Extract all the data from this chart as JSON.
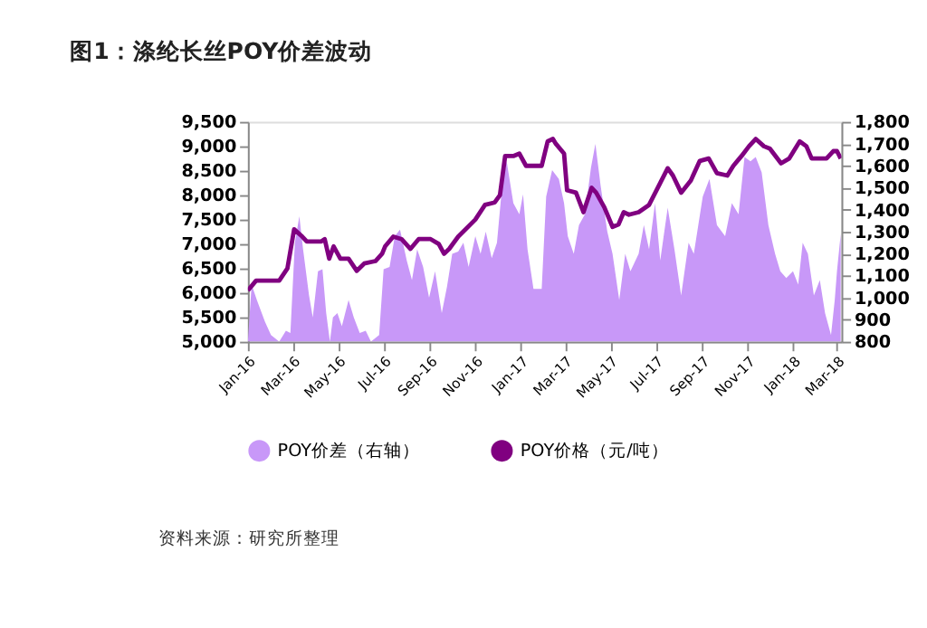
{
  "chart_data": {
    "type": "line",
    "title": "图1：涤纶长丝POY价差波动",
    "xlim": [
      "2016-01-01",
      "2018-03-07"
    ],
    "xticks": [
      {
        "value": "2016-01",
        "label": "Jan-16"
      },
      {
        "value": "2016-03",
        "label": "Mar-16"
      },
      {
        "value": "2016-05",
        "label": "May-16"
      },
      {
        "value": "2016-07",
        "label": "Jul-16"
      },
      {
        "value": "2016-09",
        "label": "Sep-16"
      },
      {
        "value": "2016-11",
        "label": "Nov-16"
      },
      {
        "value": "2017-01",
        "label": "Jan-17"
      },
      {
        "value": "2017-03",
        "label": "Mar-17"
      },
      {
        "value": "2017-05",
        "label": "May-17"
      },
      {
        "value": "2017-07",
        "label": "Jul-17"
      },
      {
        "value": "2017-09",
        "label": "Sep-17"
      },
      {
        "value": "2017-11",
        "label": "Nov-17"
      },
      {
        "value": "2018-01",
        "label": "Jan-18"
      },
      {
        "value": "2018-03",
        "label": "Mar-18"
      }
    ],
    "ylim": [
      5000,
      9500
    ],
    "yticks": [
      {
        "value": 5000,
        "label": "5,000"
      },
      {
        "value": 5500,
        "label": "5,500"
      },
      {
        "value": 6000,
        "label": "6,000"
      },
      {
        "value": 6500,
        "label": "6,500"
      },
      {
        "value": 7000,
        "label": "7,000"
      },
      {
        "value": 7500,
        "label": "7,500"
      },
      {
        "value": 8000,
        "label": "8,000"
      },
      {
        "value": 8500,
        "label": "8,500"
      },
      {
        "value": 9000,
        "label": "9,000"
      },
      {
        "value": 9500,
        "label": "9,500"
      }
    ],
    "y2lim": [
      800,
      1800
    ],
    "y2ticks": [
      {
        "value": 800,
        "label": "800"
      },
      {
        "value": 900,
        "label": "900"
      },
      {
        "value": 1000,
        "label": "1,000"
      },
      {
        "value": 1100,
        "label": "1,100"
      },
      {
        "value": 1200,
        "label": "1,200"
      },
      {
        "value": 1300,
        "label": "1,300"
      },
      {
        "value": 1400,
        "label": "1,400"
      },
      {
        "value": 1500,
        "label": "1,500"
      },
      {
        "value": 1600,
        "label": "1,600"
      },
      {
        "value": 1700,
        "label": "1,700"
      },
      {
        "value": 1800,
        "label": "1,800"
      }
    ],
    "grid": false,
    "legend": "bottom",
    "annotations": [
      "资料来源：研究所整理"
    ],
    "series": [
      {
        "name": "POY价差（右轴）",
        "type": "area",
        "axis": "y2",
        "color": "#c898f8",
        "x": [
          "2016-01-01",
          "2016-01-06",
          "2016-01-13",
          "2016-01-24",
          "2016-02-01",
          "2016-02-12",
          "2016-02-21",
          "2016-02-27",
          "2016-03-04",
          "2016-03-10",
          "2016-03-15",
          "2016-03-23",
          "2016-03-28",
          "2016-04-04",
          "2016-04-10",
          "2016-04-15",
          "2016-04-20",
          "2016-04-24",
          "2016-04-30",
          "2016-05-06",
          "2016-05-15",
          "2016-05-22",
          "2016-05-30",
          "2016-06-07",
          "2016-06-14",
          "2016-06-25",
          "2016-07-01",
          "2016-07-09",
          "2016-07-16",
          "2016-07-23",
          "2016-08-01",
          "2016-08-08",
          "2016-08-15",
          "2016-08-23",
          "2016-08-31",
          "2016-09-08",
          "2016-09-17",
          "2016-09-24",
          "2016-10-01",
          "2016-10-09",
          "2016-10-16",
          "2016-10-23",
          "2016-11-01",
          "2016-11-08",
          "2016-11-15",
          "2016-11-23",
          "2016-11-30",
          "2016-12-07",
          "2016-12-13",
          "2016-12-22",
          "2016-12-30",
          "2017-01-04",
          "2017-01-10",
          "2017-01-18",
          "2017-01-29",
          "2017-02-04",
          "2017-02-12",
          "2017-02-21",
          "2017-02-28",
          "2017-03-05",
          "2017-03-13",
          "2017-03-20",
          "2017-03-28",
          "2017-04-05",
          "2017-04-11",
          "2017-04-18",
          "2017-04-27",
          "2017-05-04",
          "2017-05-13",
          "2017-05-21",
          "2017-05-28",
          "2017-06-08",
          "2017-06-15",
          "2017-06-22",
          "2017-06-30",
          "2017-07-07",
          "2017-07-17",
          "2017-07-26",
          "2017-08-04",
          "2017-08-14",
          "2017-08-21",
          "2017-09-02",
          "2017-09-11",
          "2017-09-21",
          "2017-10-02",
          "2017-10-11",
          "2017-10-20",
          "2017-10-28",
          "2017-11-05",
          "2017-11-12",
          "2017-11-20",
          "2017-11-29",
          "2017-12-08",
          "2017-12-15",
          "2017-12-23",
          "2018-01-01",
          "2018-01-08",
          "2018-01-14",
          "2018-01-21",
          "2018-01-29",
          "2018-02-06",
          "2018-02-13",
          "2018-02-21",
          "2018-02-26",
          "2018-03-01",
          "2018-03-06"
        ],
        "values": [
          800,
          1060,
          990,
          890,
          830,
          800,
          850,
          840,
          1250,
          1370,
          1220,
          1010,
          910,
          1120,
          1130,
          930,
          800,
          910,
          930,
          870,
          990,
          910,
          840,
          850,
          800,
          830,
          1130,
          1140,
          1280,
          1310,
          1170,
          1080,
          1220,
          1140,
          1000,
          1120,
          930,
          1050,
          1200,
          1210,
          1250,
          1140,
          1280,
          1200,
          1300,
          1180,
          1250,
          1510,
          1620,
          1430,
          1380,
          1470,
          1220,
          1040,
          1040,
          1460,
          1580,
          1540,
          1430,
          1280,
          1200,
          1330,
          1380,
          1590,
          1700,
          1510,
          1300,
          1200,
          990,
          1200,
          1120,
          1200,
          1330,
          1220,
          1430,
          1170,
          1410,
          1220,
          1010,
          1250,
          1200,
          1460,
          1540,
          1330,
          1280,
          1430,
          1380,
          1640,
          1620,
          1640,
          1570,
          1330,
          1200,
          1120,
          1090,
          1120,
          1060,
          1250,
          1200,
          1010,
          1080,
          930,
          830,
          990,
          1120,
          1290
        ]
      },
      {
        "name": "POY价格（元/吨）",
        "type": "line",
        "color": "#800080",
        "x": [
          "2016-01-01",
          "2016-01-12",
          "2016-02-12",
          "2016-02-23",
          "2016-03-03",
          "2016-03-14",
          "2016-03-20",
          "2016-04-08",
          "2016-04-13",
          "2016-04-19",
          "2016-04-25",
          "2016-05-04",
          "2016-05-15",
          "2016-05-26",
          "2016-06-05",
          "2016-06-20",
          "2016-06-29",
          "2016-07-03",
          "2016-07-14",
          "2016-07-25",
          "2016-08-06",
          "2016-08-17",
          "2016-09-02",
          "2016-09-13",
          "2016-09-20",
          "2016-09-27",
          "2016-10-09",
          "2016-11-01",
          "2016-11-14",
          "2016-11-27",
          "2016-12-04",
          "2016-12-11",
          "2016-12-22",
          "2016-12-30",
          "2017-01-08",
          "2017-01-29",
          "2017-02-06",
          "2017-02-13",
          "2017-02-17",
          "2017-02-28",
          "2017-03-04",
          "2017-03-16",
          "2017-03-26",
          "2017-04-06",
          "2017-04-12",
          "2017-04-23",
          "2017-05-04",
          "2017-05-12",
          "2017-05-19",
          "2017-05-26",
          "2017-06-08",
          "2017-06-22",
          "2017-07-07",
          "2017-07-17",
          "2017-07-24",
          "2017-08-04",
          "2017-08-17",
          "2017-08-29",
          "2017-09-10",
          "2017-09-21",
          "2017-10-05",
          "2017-10-13",
          "2017-10-24",
          "2017-11-03",
          "2017-11-12",
          "2017-11-23",
          "2017-12-01",
          "2017-12-16",
          "2017-12-27",
          "2018-01-10",
          "2018-01-19",
          "2018-01-26",
          "2018-02-15",
          "2018-02-24",
          "2018-03-01",
          "2018-03-06"
        ],
        "values": [
          6050,
          6250,
          6250,
          6500,
          7300,
          7150,
          7050,
          7050,
          7100,
          6700,
          6950,
          6700,
          6700,
          6450,
          6600,
          6650,
          6800,
          6950,
          7150,
          7100,
          6900,
          7100,
          7100,
          7000,
          6800,
          6900,
          7150,
          7500,
          7800,
          7850,
          8000,
          8800,
          8800,
          8850,
          8600,
          8600,
          9100,
          9150,
          9050,
          8850,
          8100,
          8050,
          7650,
          8150,
          8050,
          7750,
          7350,
          7400,
          7650,
          7600,
          7650,
          7800,
          8250,
          8550,
          8400,
          8050,
          8300,
          8700,
          8750,
          8450,
          8400,
          8600,
          8800,
          9000,
          9150,
          9000,
          8950,
          8650,
          8750,
          9100,
          9000,
          8750,
          8750,
          8900,
          8900,
          8750
        ]
      }
    ]
  }
}
